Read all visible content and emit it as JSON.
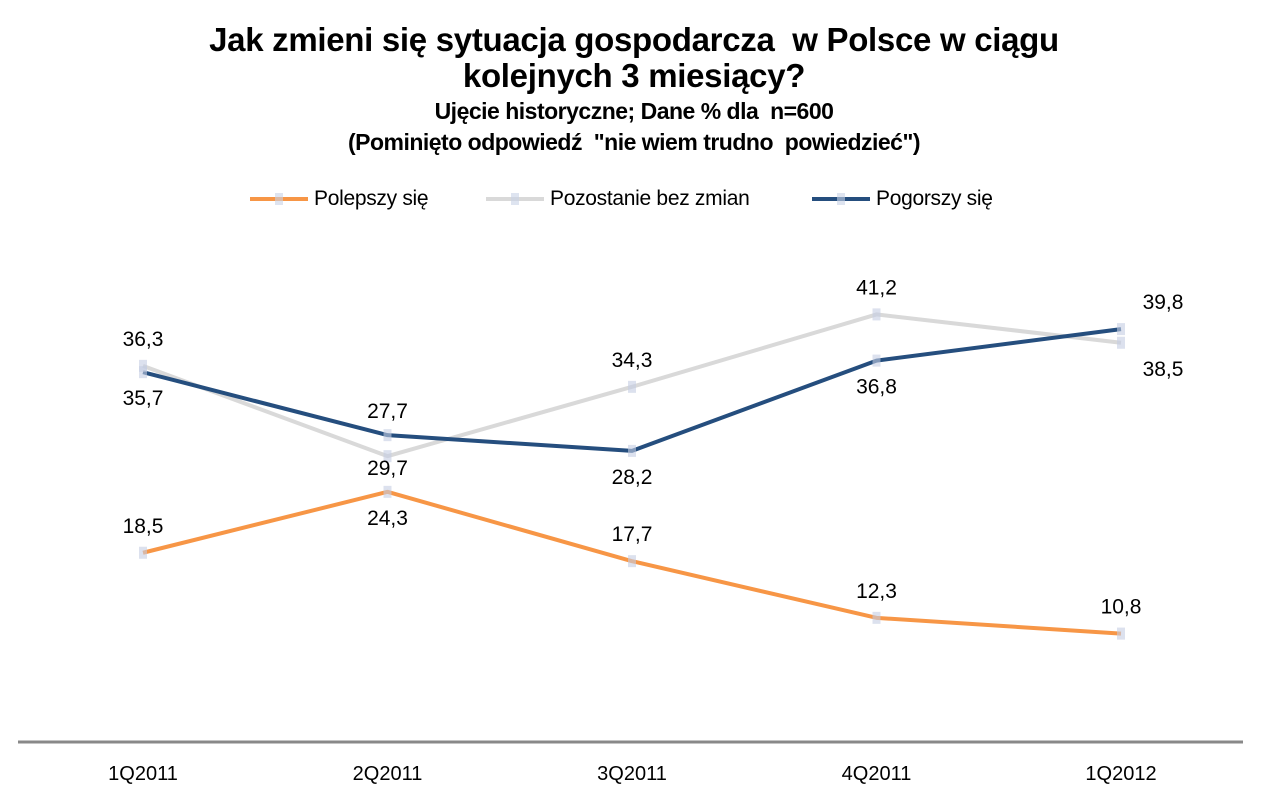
{
  "chart_data": {
    "type": "line",
    "title": "Jak zmieni się sytuacja gospodarcza  w Polsce w ciągu kolejnych 3 miesiący?",
    "title_lines": [
      "Jak zmieni się sytuacja gospodarcza  w Polsce w ciągu",
      "kolejnych 3 miesiący?"
    ],
    "subtitle_lines": [
      "Ujęcie historyczne; Dane % dla  n=600",
      "(Pominięto odpowiedź  \"nie wiem trudno  powiedzieć\")"
    ],
    "xlabel": "",
    "ylabel": "",
    "categories": [
      "1Q2011",
      "2Q2011",
      "3Q2011",
      "4Q2011",
      "1Q2012"
    ],
    "ylim": [
      0,
      45
    ],
    "grid": false,
    "legend_position": "top",
    "series": [
      {
        "name": "Polepszy się",
        "color": "#F79646",
        "values": [
          18.5,
          24.3,
          17.7,
          12.3,
          10.8
        ],
        "labels": [
          "18,5",
          "24,3",
          "17,7",
          "12,3",
          "10,8"
        ]
      },
      {
        "name": "Pozostanie bez zmian",
        "color": "#D9D9D9",
        "values": [
          36.3,
          27.7,
          34.3,
          41.2,
          38.5
        ],
        "labels": [
          "36,3",
          "27,7",
          "34,3",
          "41,2",
          "38,5"
        ]
      },
      {
        "name": "Pogorszy się",
        "color": "#254E7E",
        "values": [
          35.7,
          29.7,
          28.2,
          36.8,
          39.8
        ],
        "labels": [
          "35,7",
          "29,7",
          "28,2",
          "36,8",
          "39,8"
        ]
      }
    ]
  },
  "legend": {
    "items": [
      {
        "label": "Polepszy się",
        "color": "#F79646"
      },
      {
        "label": "Pozostanie bez zmian",
        "color": "#D9D9D9"
      },
      {
        "label": "Pogorszy się",
        "color": "#254E7E"
      }
    ]
  },
  "colors": {
    "axis": "#898989",
    "marker": "#C4CDE3"
  }
}
